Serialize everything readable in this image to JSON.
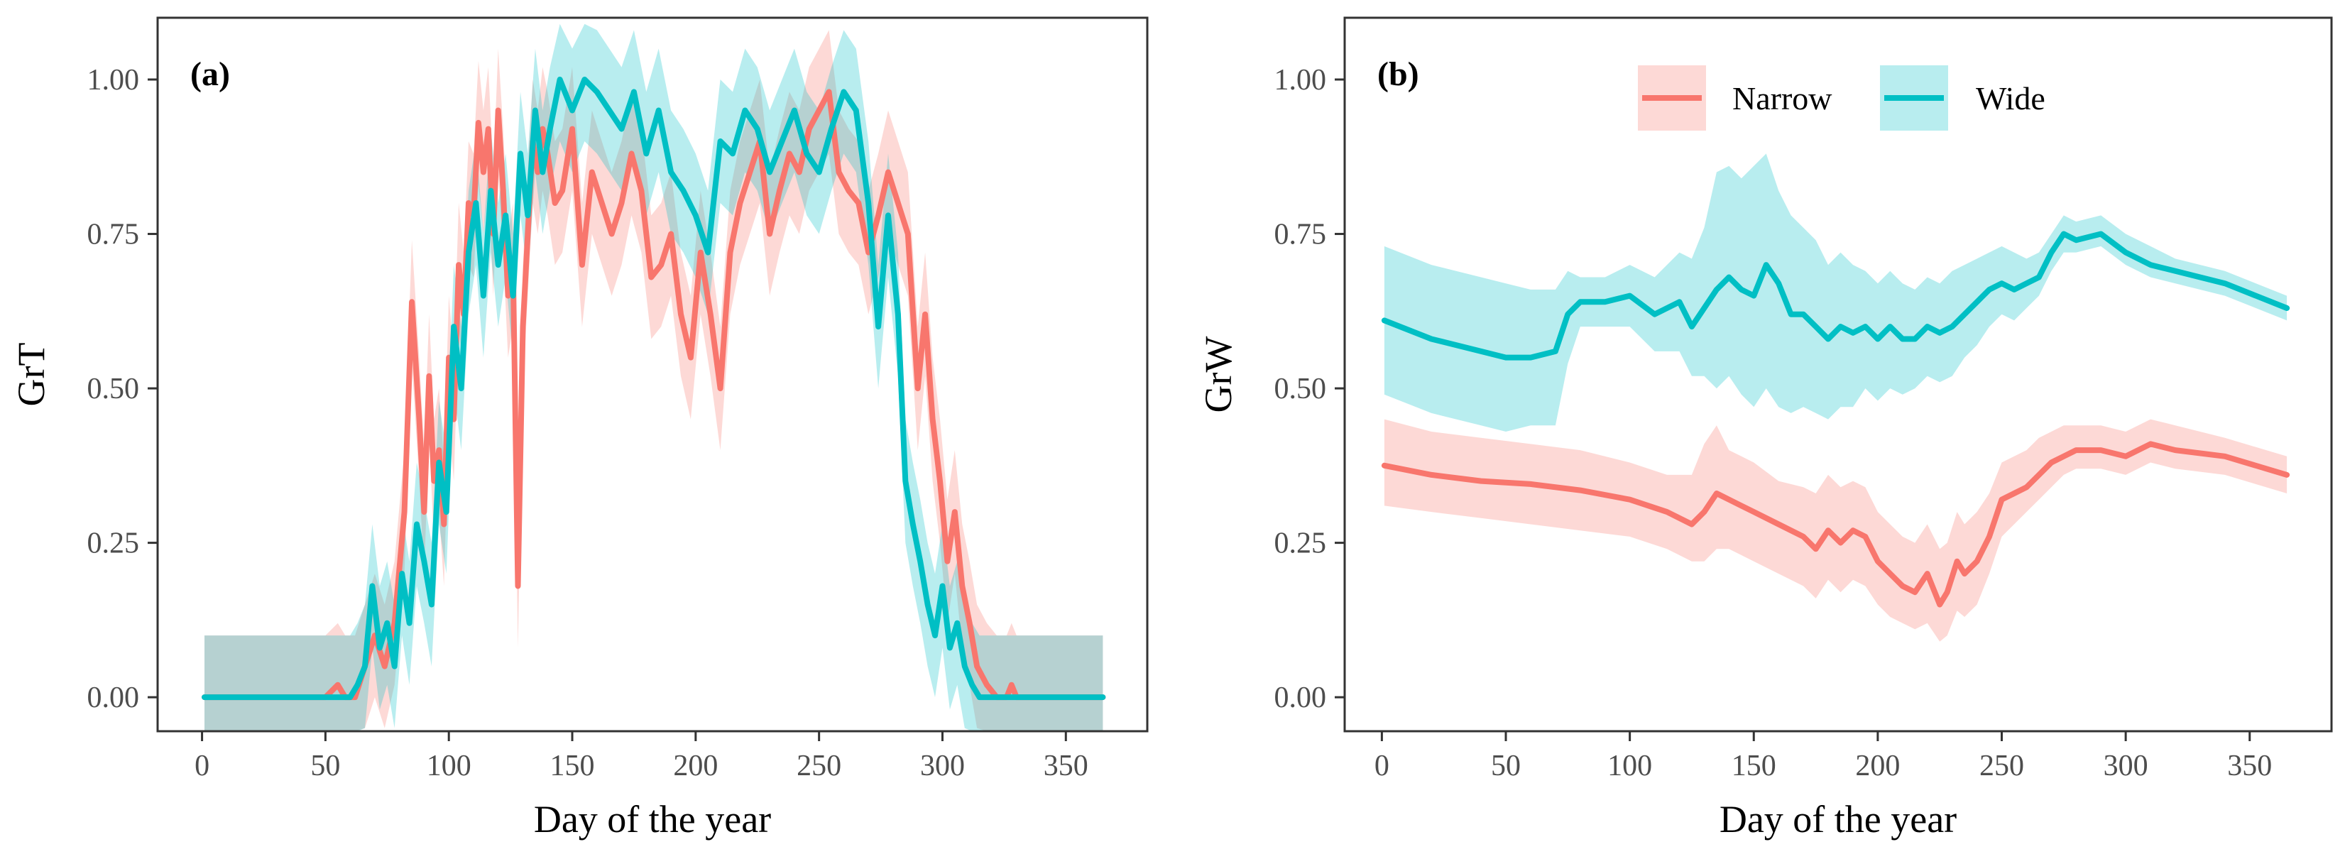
{
  "chart_data": [
    {
      "type": "line",
      "panel_label": "(a)",
      "xlabel": "Day of the year",
      "ylabel": "GrT",
      "xlim": [
        -18,
        383
      ],
      "ylim": [
        -0.055,
        1.1
      ],
      "xticks": [
        0,
        50,
        100,
        150,
        200,
        250,
        300,
        350
      ],
      "xtick_labels": [
        "0",
        "50",
        "100",
        "150",
        "200",
        "250",
        "300",
        "350"
      ],
      "yticks": [
        0,
        0.25,
        0.5,
        0.75,
        1.0
      ],
      "ytick_labels": [
        "0.00",
        "0.25",
        "0.50",
        "0.75",
        "1.00"
      ],
      "grid": false,
      "series": [
        {
          "name": "Narrow",
          "color": "#F8766D",
          "band_color": "#F8766D",
          "x": [
            1,
            50,
            55,
            58,
            62,
            66,
            70,
            74,
            78,
            82,
            85,
            88,
            90,
            92,
            94,
            96,
            98,
            100,
            102,
            104,
            106,
            108,
            110,
            112,
            114,
            116,
            118,
            120,
            122,
            124,
            126,
            128,
            130,
            132,
            134,
            136,
            138,
            140,
            143,
            146,
            150,
            154,
            158,
            162,
            166,
            170,
            174,
            178,
            182,
            186,
            190,
            194,
            198,
            202,
            206,
            210,
            214,
            218,
            222,
            226,
            230,
            234,
            238,
            242,
            246,
            250,
            254,
            258,
            262,
            266,
            270,
            274,
            278,
            282,
            286,
            290,
            293,
            296,
            299,
            302,
            305,
            308,
            311,
            314,
            318,
            322,
            326,
            328,
            330,
            365
          ],
          "y": [
            0,
            0,
            0.02,
            0,
            0,
            0.05,
            0.1,
            0.05,
            0.12,
            0.3,
            0.64,
            0.45,
            0.3,
            0.52,
            0.35,
            0.4,
            0.28,
            0.55,
            0.45,
            0.7,
            0.62,
            0.8,
            0.78,
            0.93,
            0.85,
            0.92,
            0.75,
            0.95,
            0.82,
            0.65,
            0.7,
            0.18,
            0.6,
            0.75,
            0.9,
            0.85,
            0.92,
            0.88,
            0.8,
            0.82,
            0.92,
            0.7,
            0.85,
            0.8,
            0.75,
            0.8,
            0.88,
            0.82,
            0.68,
            0.7,
            0.75,
            0.62,
            0.55,
            0.72,
            0.62,
            0.5,
            0.72,
            0.8,
            0.85,
            0.9,
            0.75,
            0.82,
            0.88,
            0.85,
            0.92,
            0.95,
            0.98,
            0.85,
            0.82,
            0.8,
            0.72,
            0.78,
            0.85,
            0.8,
            0.75,
            0.5,
            0.62,
            0.45,
            0.35,
            0.22,
            0.3,
            0.18,
            0.12,
            0.05,
            0.02,
            0,
            0,
            0.02,
            0,
            0
          ],
          "band_half_width": 0.1
        },
        {
          "name": "Wide",
          "color": "#00BFC4",
          "band_color": "#00BFC4",
          "x": [
            1,
            60,
            63,
            66,
            69,
            72,
            75,
            78,
            81,
            84,
            87,
            90,
            93,
            96,
            99,
            102,
            105,
            108,
            111,
            114,
            117,
            120,
            123,
            126,
            129,
            132,
            135,
            138,
            141,
            145,
            150,
            155,
            160,
            165,
            170,
            175,
            180,
            185,
            190,
            195,
            200,
            205,
            210,
            215,
            220,
            225,
            230,
            235,
            240,
            245,
            250,
            255,
            260,
            265,
            270,
            274,
            278,
            282,
            285,
            288,
            291,
            294,
            297,
            300,
            303,
            306,
            309,
            312,
            315,
            318,
            365
          ],
          "y": [
            0,
            0,
            0.02,
            0.05,
            0.18,
            0.08,
            0.12,
            0.05,
            0.2,
            0.12,
            0.28,
            0.22,
            0.15,
            0.38,
            0.3,
            0.6,
            0.5,
            0.72,
            0.8,
            0.65,
            0.82,
            0.7,
            0.78,
            0.65,
            0.88,
            0.78,
            0.95,
            0.85,
            0.92,
            1.0,
            0.95,
            1.0,
            0.98,
            0.95,
            0.92,
            0.98,
            0.88,
            0.95,
            0.85,
            0.82,
            0.78,
            0.72,
            0.9,
            0.88,
            0.95,
            0.92,
            0.85,
            0.9,
            0.95,
            0.88,
            0.85,
            0.92,
            0.98,
            0.95,
            0.8,
            0.6,
            0.78,
            0.62,
            0.35,
            0.28,
            0.22,
            0.15,
            0.1,
            0.18,
            0.08,
            0.12,
            0.05,
            0.02,
            0,
            0,
            0
          ],
          "band_half_width": 0.1
        }
      ]
    },
    {
      "type": "line",
      "panel_label": "(b)",
      "xlabel": "Day of the year",
      "ylabel": "GrW",
      "xlim": [
        -15,
        383
      ],
      "ylim": [
        -0.055,
        1.1
      ],
      "xticks": [
        0,
        50,
        100,
        150,
        200,
        250,
        300,
        350
      ],
      "xtick_labels": [
        "0",
        "50",
        "100",
        "150",
        "200",
        "250",
        "300",
        "350"
      ],
      "yticks": [
        0,
        0.25,
        0.5,
        0.75,
        1.0
      ],
      "ytick_labels": [
        "0.00",
        "0.25",
        "0.50",
        "0.75",
        "1.00"
      ],
      "grid": false,
      "legend_position": "top",
      "series": [
        {
          "name": "Narrow",
          "color": "#F8766D",
          "band_color": "#F8766D",
          "x": [
            1,
            20,
            40,
            60,
            80,
            100,
            115,
            125,
            130,
            135,
            140,
            145,
            150,
            160,
            170,
            175,
            180,
            185,
            190,
            195,
            200,
            205,
            210,
            215,
            220,
            225,
            228,
            232,
            235,
            240,
            245,
            250,
            255,
            260,
            265,
            270,
            275,
            280,
            290,
            300,
            310,
            320,
            340,
            365
          ],
          "y": [
            0.375,
            0.36,
            0.35,
            0.345,
            0.335,
            0.32,
            0.3,
            0.28,
            0.3,
            0.33,
            0.32,
            0.31,
            0.3,
            0.28,
            0.26,
            0.24,
            0.27,
            0.25,
            0.27,
            0.26,
            0.22,
            0.2,
            0.18,
            0.17,
            0.2,
            0.15,
            0.17,
            0.22,
            0.2,
            0.22,
            0.26,
            0.32,
            0.33,
            0.34,
            0.36,
            0.38,
            0.39,
            0.4,
            0.4,
            0.39,
            0.41,
            0.4,
            0.39,
            0.36
          ],
          "band_lower": [
            0.31,
            0.3,
            0.29,
            0.28,
            0.27,
            0.26,
            0.24,
            0.22,
            0.22,
            0.24,
            0.24,
            0.23,
            0.22,
            0.2,
            0.18,
            0.16,
            0.19,
            0.17,
            0.19,
            0.18,
            0.15,
            0.13,
            0.12,
            0.11,
            0.12,
            0.09,
            0.1,
            0.14,
            0.13,
            0.15,
            0.2,
            0.26,
            0.28,
            0.3,
            0.32,
            0.34,
            0.36,
            0.37,
            0.37,
            0.36,
            0.38,
            0.37,
            0.36,
            0.33
          ],
          "band_upper": [
            0.45,
            0.43,
            0.42,
            0.41,
            0.4,
            0.38,
            0.36,
            0.36,
            0.41,
            0.44,
            0.4,
            0.39,
            0.38,
            0.35,
            0.34,
            0.33,
            0.36,
            0.34,
            0.35,
            0.34,
            0.3,
            0.28,
            0.26,
            0.25,
            0.28,
            0.24,
            0.25,
            0.3,
            0.28,
            0.3,
            0.33,
            0.38,
            0.39,
            0.4,
            0.42,
            0.43,
            0.44,
            0.44,
            0.44,
            0.43,
            0.45,
            0.44,
            0.42,
            0.39
          ]
        },
        {
          "name": "Wide",
          "color": "#00BFC4",
          "band_color": "#00BFC4",
          "x": [
            1,
            20,
            40,
            50,
            60,
            70,
            75,
            80,
            90,
            100,
            110,
            120,
            125,
            130,
            135,
            140,
            145,
            150,
            155,
            160,
            165,
            170,
            175,
            180,
            185,
            190,
            195,
            200,
            205,
            210,
            215,
            220,
            225,
            230,
            235,
            240,
            245,
            250,
            255,
            260,
            265,
            270,
            275,
            280,
            290,
            300,
            310,
            320,
            340,
            365
          ],
          "y": [
            0.61,
            0.58,
            0.56,
            0.55,
            0.55,
            0.56,
            0.62,
            0.64,
            0.64,
            0.65,
            0.62,
            0.64,
            0.6,
            0.63,
            0.66,
            0.68,
            0.66,
            0.65,
            0.7,
            0.67,
            0.62,
            0.62,
            0.6,
            0.58,
            0.6,
            0.59,
            0.6,
            0.58,
            0.6,
            0.58,
            0.58,
            0.6,
            0.59,
            0.6,
            0.62,
            0.64,
            0.66,
            0.67,
            0.66,
            0.67,
            0.68,
            0.72,
            0.75,
            0.74,
            0.75,
            0.72,
            0.7,
            0.69,
            0.67,
            0.63
          ],
          "band_lower": [
            0.49,
            0.46,
            0.44,
            0.43,
            0.44,
            0.44,
            0.54,
            0.6,
            0.6,
            0.6,
            0.56,
            0.56,
            0.52,
            0.52,
            0.5,
            0.52,
            0.49,
            0.47,
            0.5,
            0.47,
            0.46,
            0.47,
            0.46,
            0.45,
            0.47,
            0.47,
            0.5,
            0.48,
            0.5,
            0.49,
            0.5,
            0.52,
            0.51,
            0.52,
            0.55,
            0.57,
            0.6,
            0.62,
            0.61,
            0.63,
            0.65,
            0.69,
            0.72,
            0.72,
            0.73,
            0.7,
            0.68,
            0.67,
            0.65,
            0.61
          ],
          "band_upper": [
            0.73,
            0.7,
            0.68,
            0.67,
            0.66,
            0.66,
            0.69,
            0.68,
            0.68,
            0.7,
            0.68,
            0.72,
            0.71,
            0.76,
            0.85,
            0.86,
            0.84,
            0.86,
            0.88,
            0.82,
            0.78,
            0.76,
            0.74,
            0.7,
            0.72,
            0.7,
            0.69,
            0.67,
            0.69,
            0.67,
            0.66,
            0.68,
            0.67,
            0.69,
            0.7,
            0.71,
            0.72,
            0.73,
            0.72,
            0.71,
            0.72,
            0.75,
            0.78,
            0.77,
            0.78,
            0.75,
            0.73,
            0.71,
            0.69,
            0.65
          ]
        }
      ]
    }
  ]
}
